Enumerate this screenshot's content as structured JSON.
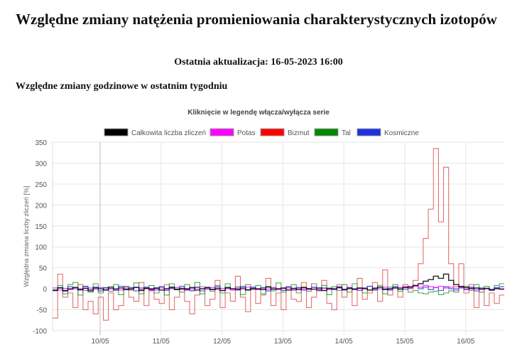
{
  "page": {
    "title": "Względne zmiany natężenia promieniowania charakterystycznych izotopów",
    "last_update": "Ostatnia aktualizacja: 16-05-2023 16:00",
    "section_title": "Względne zmiany godzinowe w ostatnim tygodniu"
  },
  "chart_data": {
    "type": "line",
    "step": true,
    "title": "Kliknięcie w legendę włącza/wyłącza serie",
    "xlabel": "",
    "ylabel": "Względna zmiana liczby zliczeń [%]",
    "ylim": [
      -100,
      350
    ],
    "yticks": [
      "350",
      "300",
      "250",
      "200",
      "150",
      "100",
      "50",
      "0",
      "-50",
      "-100"
    ],
    "xticks": [
      "10/05",
      "11/05",
      "12/05",
      "13/05",
      "14/05",
      "15/05",
      "16/05"
    ],
    "x_interval": "2h",
    "grid": true,
    "legend": "top",
    "series": [
      {
        "name": "Całkowita liczba zliczeń",
        "color": "#000000",
        "values": [
          -3,
          2,
          -4,
          0,
          3,
          -2,
          1,
          -5,
          2,
          0,
          -3,
          4,
          -1,
          2,
          -2,
          0,
          3,
          -4,
          1,
          -1,
          2,
          -3,
          0,
          4,
          -2,
          1,
          -1,
          3,
          -3,
          0,
          2,
          -2,
          1,
          -4,
          3,
          0,
          -1,
          2,
          -3,
          1,
          0,
          -2,
          4,
          -1,
          0,
          2,
          -3,
          1,
          -2,
          3,
          0,
          -1,
          2,
          -4,
          1,
          0,
          3,
          -2,
          1,
          -1,
          2,
          0,
          -3,
          1,
          4,
          -2,
          0,
          2,
          -1,
          3,
          5,
          8,
          12,
          18,
          22,
          30,
          25,
          35,
          20,
          10,
          5,
          3,
          0,
          2,
          -1,
          1,
          -2,
          0,
          -1
        ]
      },
      {
        "name": "Potas",
        "color": "#ff00ff",
        "values": [
          2,
          -3,
          1,
          -2,
          3,
          0,
          -4,
          2,
          -1,
          3,
          -2,
          1,
          0,
          -3,
          2,
          -1,
          4,
          -2,
          0,
          1,
          -3,
          2,
          -1,
          0,
          3,
          -2,
          1,
          -4,
          2,
          0,
          -1,
          3,
          -2,
          1,
          0,
          -3,
          2,
          -1,
          4,
          0,
          -2,
          1,
          -1,
          3,
          -2,
          0,
          2,
          -3,
          1,
          0,
          -2,
          3,
          -1,
          1,
          -2,
          0,
          2,
          -1,
          3,
          -2,
          0,
          1,
          -3,
          2,
          0,
          4,
          -1,
          2,
          3,
          5,
          2,
          6,
          4,
          8,
          5,
          3,
          6,
          2,
          4,
          1,
          3,
          0,
          2,
          -1,
          1,
          0,
          -2,
          1,
          0
        ]
      },
      {
        "name": "Bizmut",
        "color": "#e06060",
        "values": [
          -70,
          35,
          -20,
          -10,
          -45,
          10,
          -50,
          -30,
          -60,
          -20,
          -75,
          -10,
          -50,
          -40,
          5,
          -20,
          -30,
          15,
          -40,
          -5,
          -25,
          -35,
          10,
          -50,
          -20,
          0,
          -30,
          -60,
          -15,
          5,
          -40,
          -25,
          20,
          -45,
          -10,
          -30,
          30,
          -20,
          -55,
          0,
          -35,
          -15,
          25,
          -40,
          -10,
          -50,
          5,
          -25,
          -30,
          15,
          -45,
          -20,
          -5,
          20,
          -35,
          -50,
          10,
          -20,
          0,
          -40,
          25,
          -25,
          -10,
          15,
          -30,
          45,
          -15,
          5,
          -20,
          10,
          0,
          20,
          60,
          120,
          190,
          335,
          160,
          290,
          60,
          5,
          60,
          -10,
          10,
          -45,
          0,
          -40,
          -10,
          -35,
          -15
        ]
      },
      {
        "name": "Tal",
        "color": "#2a9a2a",
        "values": [
          -5,
          8,
          -12,
          10,
          15,
          -15,
          5,
          -8,
          12,
          -10,
          3,
          -6,
          10,
          -14,
          6,
          -3,
          14,
          -12,
          2,
          8,
          -10,
          5,
          -15,
          12,
          0,
          -8,
          10,
          -5,
          15,
          -12,
          4,
          -6,
          8,
          -10,
          12,
          -3,
          5,
          -14,
          10,
          -2,
          8,
          -12,
          6,
          -5,
          14,
          -8,
          2,
          10,
          -10,
          4,
          -6,
          12,
          -2,
          8,
          -14,
          5,
          -4,
          10,
          -8,
          12,
          0,
          -10,
          6,
          -3,
          8,
          -12,
          4,
          10,
          -6,
          5,
          -8,
          -4,
          -10,
          -12,
          -8,
          -6,
          -14,
          -10,
          -5,
          -8,
          2,
          6,
          -4,
          10,
          -8,
          6,
          -3,
          8,
          12
        ]
      },
      {
        "name": "Kosmiczne",
        "color": "#2030e0",
        "values": [
          -4,
          3,
          -6,
          5,
          0,
          -3,
          6,
          -2,
          4,
          -5,
          2,
          0,
          -4,
          6,
          -1,
          3,
          -5,
          2,
          4,
          -3,
          0,
          5,
          -4,
          2,
          -2,
          6,
          -3,
          0,
          4,
          -5,
          3,
          -1,
          5,
          -4,
          2,
          0,
          -3,
          6,
          -2,
          4,
          -1,
          3,
          -5,
          2,
          0,
          -4,
          5,
          -2,
          3,
          -3,
          1,
          4,
          -4,
          2,
          0,
          -2,
          5,
          -3,
          3,
          0,
          -4,
          2,
          6,
          -2,
          4,
          0,
          -3,
          5,
          2,
          -1,
          3,
          8,
          0,
          4,
          -2,
          3,
          -4,
          5,
          0,
          -3,
          6,
          -2,
          4,
          -5,
          2,
          0,
          -4,
          3,
          5
        ]
      }
    ]
  }
}
